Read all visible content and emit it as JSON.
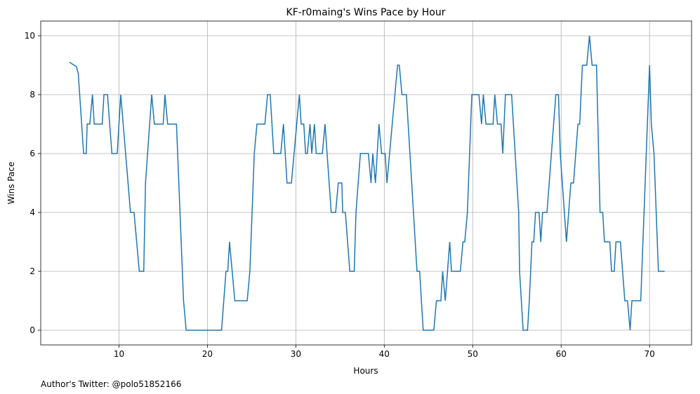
{
  "chart_data": {
    "type": "line",
    "title": "KF-r0maing's Wins Pace by Hour",
    "xlabel": "Hours",
    "ylabel": "Wins Pace",
    "annotation": "Author's Twitter: @polo51852166",
    "x": [
      4.4,
      5.2,
      5.4,
      6.0,
      6.3,
      6.4,
      6.7,
      7.0,
      7.2,
      8.1,
      8.3,
      8.7,
      9.2,
      9.8,
      10.2,
      11.3,
      11.7,
      12.3,
      12.8,
      13.0,
      13.7,
      14.0,
      15.0,
      15.2,
      15.5,
      16.5,
      17.3,
      17.6,
      21.6,
      22.1,
      22.3,
      22.5,
      23.1,
      24.5,
      24.8,
      25.3,
      25.6,
      26.5,
      26.8,
      27.1,
      27.5,
      28.3,
      28.6,
      29.0,
      29.5,
      30.4,
      30.6,
      30.9,
      31.1,
      31.3,
      31.6,
      31.8,
      32.1,
      32.3,
      33.0,
      33.3,
      34.0,
      34.5,
      34.8,
      35.2,
      35.3,
      35.6,
      36.1,
      36.6,
      36.8,
      37.3,
      38.2,
      38.5,
      38.7,
      39.0,
      39.4,
      39.7,
      40.1,
      40.3,
      41.5,
      41.7,
      42.0,
      42.5,
      42.9,
      43.3,
      43.7,
      44.0,
      44.4,
      45.6,
      45.9,
      46.4,
      46.6,
      46.9,
      47.4,
      47.6,
      48.6,
      48.9,
      49.1,
      49.4,
      49.9,
      50.7,
      51.0,
      51.2,
      51.5,
      52.3,
      52.5,
      52.8,
      53.2,
      53.4,
      53.7,
      54.4,
      55.2,
      55.3,
      55.7,
      56.2,
      56.4,
      56.7,
      56.9,
      57.1,
      57.5,
      57.7,
      57.9,
      58.4,
      59.4,
      59.7,
      59.9,
      60.6,
      61.1,
      61.4,
      61.9,
      62.1,
      62.4,
      62.9,
      63.2,
      63.5,
      64.0,
      64.4,
      64.7,
      64.9,
      65.5,
      65.7,
      66.0,
      66.2,
      66.7,
      67.2,
      67.5,
      67.8,
      68.0,
      69.0,
      70.0,
      70.2,
      70.5,
      71.0,
      71.7
    ],
    "values": [
      9.1,
      8.95,
      8.7,
      6,
      6,
      7,
      7,
      8,
      7,
      7,
      8,
      8,
      6,
      6,
      8,
      4,
      4,
      2,
      2,
      5,
      8,
      7,
      7,
      8,
      7,
      7,
      1,
      0,
      0,
      2,
      2,
      3,
      1,
      1,
      2,
      6,
      7,
      7,
      8,
      8,
      6,
      6,
      7,
      5,
      5,
      8,
      7,
      7,
      6,
      6,
      7,
      6,
      7,
      6,
      6,
      7,
      4,
      4,
      5,
      5,
      4,
      4,
      2,
      2,
      4,
      6,
      6,
      5,
      6,
      5,
      7,
      6,
      6,
      5,
      9,
      9,
      8,
      8,
      6,
      4,
      2,
      2,
      0,
      0,
      1,
      1,
      2,
      1,
      3,
      2,
      2,
      3,
      3,
      4,
      8,
      8,
      7,
      8,
      7,
      7,
      8,
      7,
      7,
      6,
      8,
      8,
      4,
      2,
      0,
      0,
      1,
      3,
      3,
      4,
      4,
      3,
      4,
      4,
      8,
      8,
      6,
      3,
      5,
      5,
      7,
      7,
      9,
      9,
      10,
      9,
      9,
      4,
      4,
      3,
      3,
      2,
      2,
      3,
      3,
      1,
      1,
      0,
      1,
      1,
      9,
      7,
      6,
      2,
      2
    ],
    "color": "#1f77b4",
    "xlim": [
      1.15,
      74.75
    ],
    "ylim": [
      -0.5,
      10.5
    ],
    "xticks": [
      10,
      20,
      30,
      40,
      50,
      60,
      70
    ],
    "yticks": [
      0,
      2,
      4,
      6,
      8,
      10
    ],
    "grid": true
  }
}
